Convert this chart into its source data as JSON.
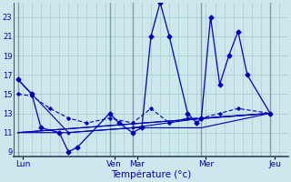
{
  "xlabel": "Température (°c)",
  "bg_color": "#cce8ec",
  "grid_color": "#aacccc",
  "line_color": "#0000bb",
  "sep_color": "#8899aa",
  "ylim": [
    8.5,
    24.5
  ],
  "yticks": [
    9,
    11,
    13,
    15,
    17,
    19,
    21,
    23
  ],
  "xlim": [
    0,
    30
  ],
  "day_labels": [
    "Lun",
    "Ven",
    "Mar",
    "Mer",
    "Jeu"
  ],
  "day_positions": [
    1,
    11,
    13.5,
    21,
    28.5
  ],
  "day_sep_x": [
    0.5,
    10.5,
    13.0,
    20.5,
    28.0
  ],
  "series1_x": [
    0.5,
    2,
    3,
    5,
    6,
    7,
    10.5,
    11.5,
    13.0,
    14,
    15,
    16,
    17,
    19,
    20,
    20.5,
    21.5,
    22.5,
    23.5,
    24.5,
    25.5,
    28.0
  ],
  "series1_y": [
    16.5,
    15.0,
    11.5,
    11.0,
    9.0,
    9.5,
    13.0,
    12.0,
    11.0,
    11.5,
    21.0,
    24.5,
    21.0,
    13.0,
    12.0,
    12.5,
    23.0,
    16.0,
    19.0,
    21.5,
    17.0,
    13.0
  ],
  "series2_x": [
    0.5,
    2,
    4,
    6,
    8,
    10.5,
    13.0,
    15,
    17,
    19,
    20.5,
    22.5,
    24.5,
    28.0
  ],
  "series2_y": [
    15.0,
    14.8,
    13.5,
    12.5,
    12.0,
    12.5,
    12.0,
    13.5,
    12.0,
    12.5,
    12.5,
    13.0,
    13.5,
    13.0
  ],
  "series3_x": [
    0.5,
    6,
    13.0,
    20.5,
    28.0
  ],
  "series3_y": [
    16.5,
    11.0,
    11.5,
    12.5,
    13.0
  ],
  "series4_x": [
    0.5,
    6,
    13.0,
    20.5,
    28.0
  ],
  "series4_y": [
    11.0,
    11.0,
    11.5,
    11.5,
    13.0
  ],
  "series5_x": [
    0.5,
    28.0
  ],
  "series5_y": [
    11.0,
    13.0
  ],
  "series6_x": [
    0.5,
    28.0
  ],
  "series6_y": [
    11.0,
    13.0
  ]
}
